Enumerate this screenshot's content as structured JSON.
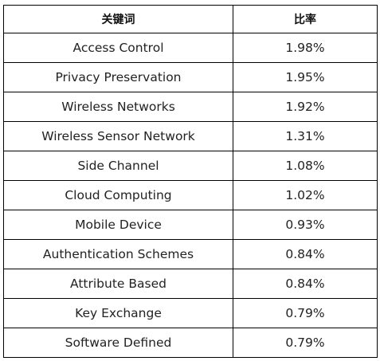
{
  "table": {
    "headers": [
      "关键词",
      "比率"
    ],
    "rows": [
      {
        "keyword": "Access Control",
        "ratio": "1.98%"
      },
      {
        "keyword": "Privacy Preservation",
        "ratio": "1.95%"
      },
      {
        "keyword": "Wireless Networks",
        "ratio": "1.92%"
      },
      {
        "keyword": "Wireless Sensor Network",
        "ratio": "1.31%"
      },
      {
        "keyword": "Side Channel",
        "ratio": "1.08%"
      },
      {
        "keyword": "Cloud Computing",
        "ratio": "1.02%"
      },
      {
        "keyword": "Mobile Device",
        "ratio": "0.93%"
      },
      {
        "keyword": "Authentication Schemes",
        "ratio": "0.84%"
      },
      {
        "keyword": "Attribute Based",
        "ratio": "0.84%"
      },
      {
        "keyword": "Key Exchange",
        "ratio": "0.79%"
      },
      {
        "keyword": "Software Defined",
        "ratio": "0.79%"
      }
    ]
  }
}
